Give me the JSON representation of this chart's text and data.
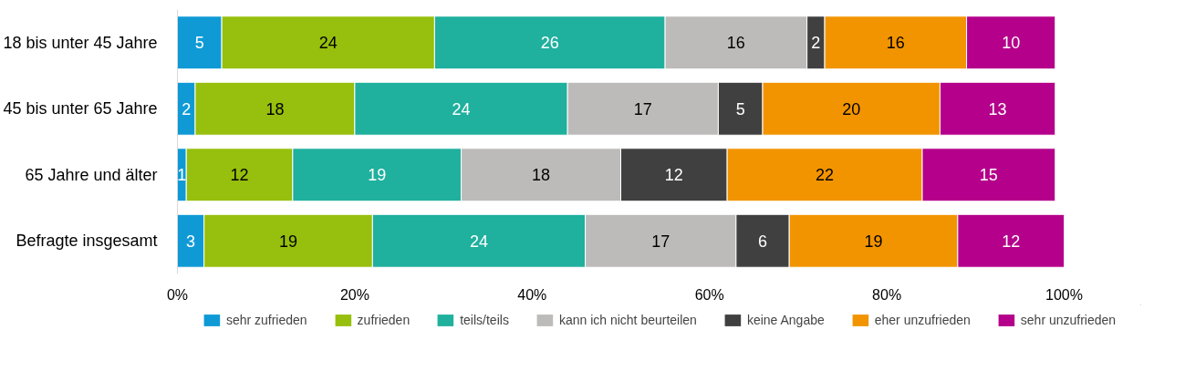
{
  "chart_data": {
    "type": "bar",
    "orientation": "horizontal",
    "stacked": true,
    "data_labels": true,
    "grid": false,
    "legend": "bottom",
    "categories": [
      "18 bis unter 45 Jahre",
      "45 bis unter 65 Jahre",
      "65 Jahre und älter",
      "Befragte insgesamt"
    ],
    "xlim": [
      0,
      100
    ],
    "xticks": [
      {
        "value": 0,
        "label": "0%"
      },
      {
        "value": 20,
        "label": "20%"
      },
      {
        "value": 40,
        "label": "40%"
      },
      {
        "value": 60,
        "label": "60%"
      },
      {
        "value": 80,
        "label": "80%"
      },
      {
        "value": 100,
        "label": "100%"
      }
    ],
    "series": [
      {
        "name": "sehr zufrieden",
        "color": "#0f9ad6",
        "values": [
          5,
          2,
          1,
          3
        ]
      },
      {
        "name": "zufrieden",
        "color": "#97bf0d",
        "values": [
          24,
          18,
          12,
          19
        ]
      },
      {
        "name": "teils/teils",
        "color": "#1fb09e",
        "values": [
          26,
          24,
          19,
          24
        ]
      },
      {
        "name": "kann ich nicht beurteilen",
        "color": "#bdbbba",
        "values": [
          16,
          17,
          18,
          17
        ]
      },
      {
        "name": "keine Angabe",
        "color": "#404040",
        "values": [
          2,
          5,
          12,
          6
        ]
      },
      {
        "name": "eher unzufrieden",
        "color": "#f29400",
        "values": [
          16,
          20,
          22,
          19
        ]
      },
      {
        "name": "sehr unzufrieden",
        "color": "#b4008a",
        "values": [
          10,
          13,
          15,
          12
        ]
      }
    ]
  }
}
